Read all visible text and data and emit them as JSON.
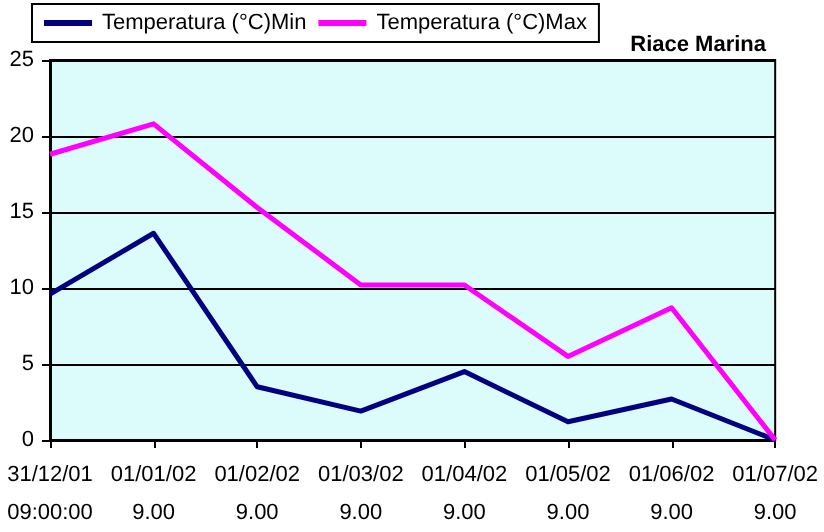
{
  "chart_data": {
    "type": "line",
    "title": "Riace Marina",
    "categories": [
      "31/12/01\n09:00:00",
      "01/01/02\n9.00",
      "01/02/02\n9.00",
      "01/03/02\n9.00",
      "01/04/02\n9.00",
      "01/05/02\n9.00",
      "01/06/02\n9.00",
      "01/07/02\n9.00"
    ],
    "series": [
      {
        "name": "Temperatura (°C)Min",
        "color": "#000080",
        "values": [
          9.6,
          13.6,
          3.5,
          1.9,
          4.5,
          1.2,
          2.7,
          0
        ]
      },
      {
        "name": "Temperatura (°C)Max",
        "color": "#ff00ff",
        "values": [
          18.8,
          20.8,
          15.3,
          10.2,
          10.2,
          5.5,
          8.7,
          0
        ]
      }
    ],
    "ylim": [
      0,
      25
    ],
    "yticks": [
      0,
      5,
      10,
      15,
      20,
      25
    ],
    "grid": "y",
    "legend": "top left",
    "marker": "none",
    "line_style": "solid"
  }
}
